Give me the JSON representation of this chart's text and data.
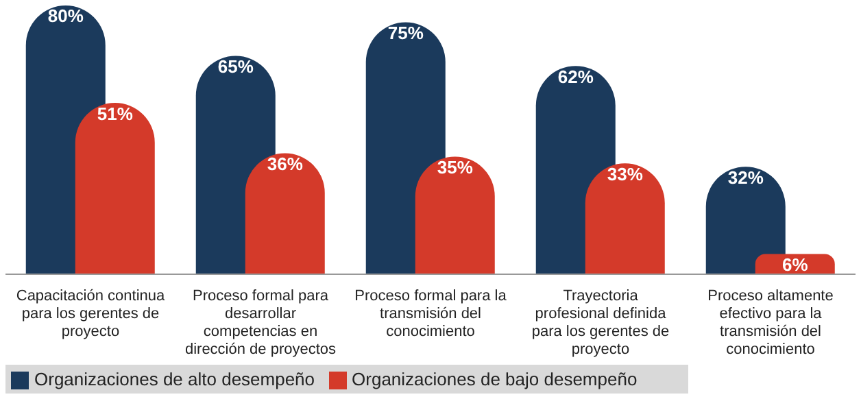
{
  "chart_data": {
    "type": "bar",
    "categories": [
      "Capacitación continua para los gerentes de proyecto",
      "Proceso formal para desarrollar competencias en dirección de proyectos",
      "Proceso formal para la transmisión del conocimiento",
      "Trayectoria profesional definida para los gerentes de proyecto",
      "Proceso altamente efectivo para la transmisión del conocimiento"
    ],
    "series": [
      {
        "name": "Organizaciones de alto desempeño",
        "color": "#1b3a5c",
        "values": [
          80,
          65,
          75,
          62,
          32
        ],
        "value_labels": [
          "80%",
          "65%",
          "75%",
          "62%",
          "32%"
        ]
      },
      {
        "name": "Organizaciones de bajo desempeño",
        "color": "#d43a2a",
        "values": [
          51,
          36,
          35,
          33,
          6
        ],
        "value_labels": [
          "51%",
          "36%",
          "35%",
          "33%",
          "6%"
        ]
      }
    ],
    "legend": "bottom left"
  }
}
